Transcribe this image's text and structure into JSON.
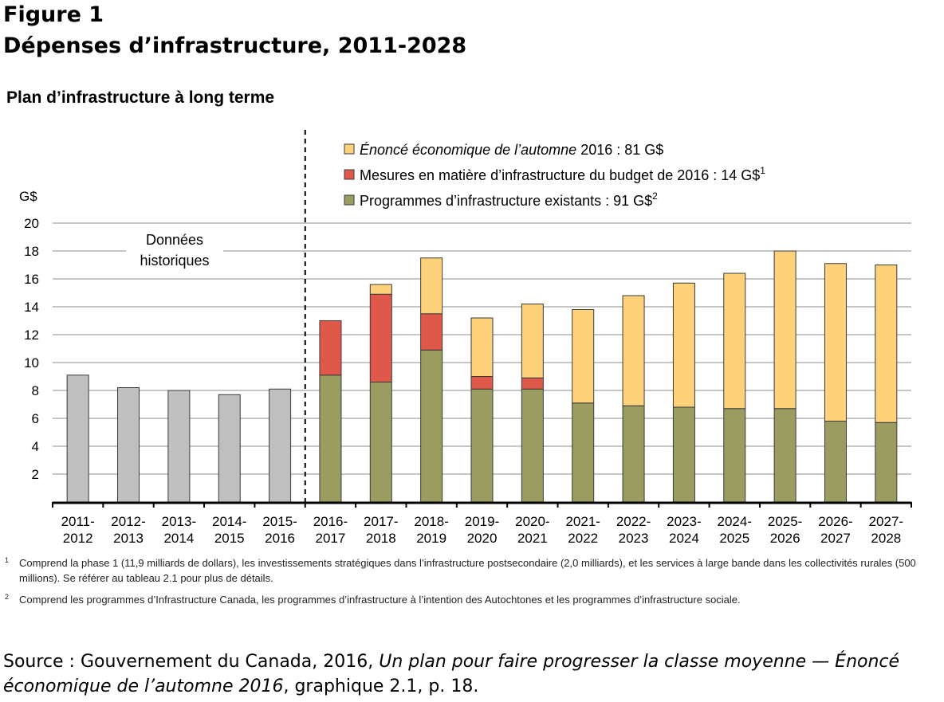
{
  "figure": {
    "label": "Figure 1",
    "title": "Dépenses d’infrastructure, 2011-2028"
  },
  "chart_data": {
    "type": "bar",
    "stacked": true,
    "title": "Plan d’infrastructure à long terme",
    "ylabel": "G$",
    "ylim": [
      0,
      20
    ],
    "yticks": [
      2,
      4,
      6,
      8,
      10,
      12,
      14,
      16,
      18,
      20
    ],
    "grid": true,
    "legend_position": "top-right",
    "annotation": [
      "Données",
      "historiques"
    ],
    "categories": [
      [
        "2011-",
        "2012"
      ],
      [
        "2012-",
        "2013"
      ],
      [
        "2013-",
        "2014"
      ],
      [
        "2014-",
        "2015"
      ],
      [
        "2015-",
        "2016"
      ],
      [
        "2016-",
        "2017"
      ],
      [
        "2017-",
        "2018"
      ],
      [
        "2018-",
        "2019"
      ],
      [
        "2019-",
        "2020"
      ],
      [
        "2020-",
        "2021"
      ],
      [
        "2021-",
        "2022"
      ],
      [
        "2022-",
        "2023"
      ],
      [
        "2023-",
        "2024"
      ],
      [
        "2024-",
        "2025"
      ],
      [
        "2025-",
        "2026"
      ],
      [
        "2026-",
        "2027"
      ],
      [
        "2027-",
        "2028"
      ]
    ],
    "historical": [
      9.1,
      8.2,
      8.0,
      7.7,
      8.1,
      null,
      null,
      null,
      null,
      null,
      null,
      null,
      null,
      null,
      null,
      null,
      null
    ],
    "series": [
      {
        "name": "Programmes d’infrastructure existants : 91 G$",
        "sup": "2",
        "color": "#9b9c5f",
        "values": [
          null,
          null,
          null,
          null,
          null,
          9.1,
          8.6,
          10.9,
          8.1,
          8.1,
          7.1,
          6.9,
          6.8,
          6.7,
          6.7,
          5.8,
          5.7
        ]
      },
      {
        "name": "Mesures en matière d’infrastructure du budget de 2016 : 14 G$",
        "sup": "1",
        "color": "#e0584a",
        "values": [
          null,
          null,
          null,
          null,
          null,
          3.9,
          6.3,
          2.6,
          0.9,
          0.8,
          0,
          0,
          0,
          0,
          0,
          0,
          0
        ]
      },
      {
        "name": "2016 : 81 G$",
        "name_italic": "Énoncé économique de l’automne",
        "sup": "",
        "color": "#fed27a",
        "values": [
          null,
          null,
          null,
          null,
          null,
          0,
          0.7,
          4.0,
          4.2,
          5.3,
          6.7,
          7.9,
          8.9,
          9.7,
          11.3,
          11.3,
          11.3
        ]
      }
    ],
    "historical_color": "#bfbfbf"
  },
  "footnotes": [
    {
      "num": "1",
      "text": "Comprend la phase 1 (11,9 milliards de dollars), les investissements stratégiques dans l’infrastructure postsecondaire (2,0 milliards), et les services à large bande dans les collectivités rurales (500 millions). Se référer au tableau 2.1 pour plus de détails."
    },
    {
      "num": "2",
      "text": "Comprend les programmes d’Infrastructure Canada, les programmes d’infrastructure à l’intention des Autochtones et les programmes d’infrastructure sociale."
    }
  ],
  "source": {
    "prefix": "Source : Gouvernement du Canada, 2016, ",
    "italic": "Un plan pour faire progresser la classe moyenne — Énoncé économique de l’automne 2016",
    "suffix": ", graphique 2.1, p. 18."
  }
}
